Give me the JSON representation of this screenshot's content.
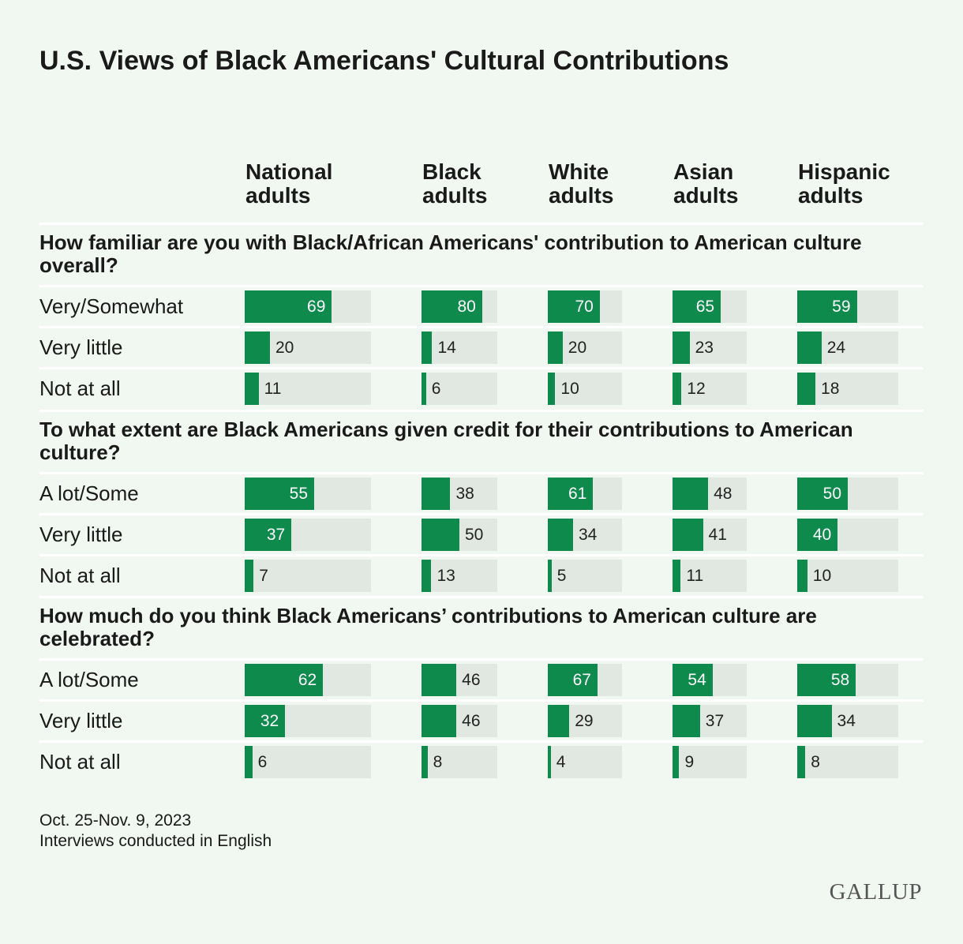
{
  "chart_data": {
    "type": "bar",
    "title": "U.S. Views of Black Americans' Cultural Contributions",
    "columns": [
      "National adults",
      "Black adults",
      "White adults",
      "Asian adults",
      "Hispanic adults"
    ],
    "xlim": [
      0,
      100
    ],
    "color": "#0d8a4c",
    "track_color": "#e1e7e1",
    "sections": [
      {
        "question": "How familiar are you with Black/African Americans' contribution to American culture overall?",
        "categories": [
          "Very/Somewhat",
          "Very little",
          "Not at all"
        ],
        "values": [
          [
            69,
            20,
            11
          ],
          [
            80,
            14,
            6
          ],
          [
            70,
            20,
            10
          ],
          [
            65,
            23,
            12
          ],
          [
            59,
            24,
            18
          ]
        ]
      },
      {
        "question": "To what extent are Black Americans given credit for their contributions to American culture?",
        "categories": [
          "A lot/Some",
          "Very little",
          "Not at all"
        ],
        "values": [
          [
            55,
            37,
            7
          ],
          [
            38,
            50,
            13
          ],
          [
            61,
            34,
            5
          ],
          [
            48,
            41,
            11
          ],
          [
            50,
            40,
            10
          ]
        ]
      },
      {
        "question": "How much do you think Black Americans’ contributions to American culture are celebrated?",
        "categories": [
          "A lot/Some",
          "Very little",
          "Not at all"
        ],
        "values": [
          [
            62,
            32,
            6
          ],
          [
            46,
            46,
            8
          ],
          [
            67,
            29,
            4
          ],
          [
            54,
            37,
            9
          ],
          [
            58,
            34,
            8
          ]
        ]
      }
    ],
    "notes": [
      "Oct. 25-Nov. 9, 2023",
      "Interviews conducted in English"
    ],
    "logo": "GALLUP"
  }
}
